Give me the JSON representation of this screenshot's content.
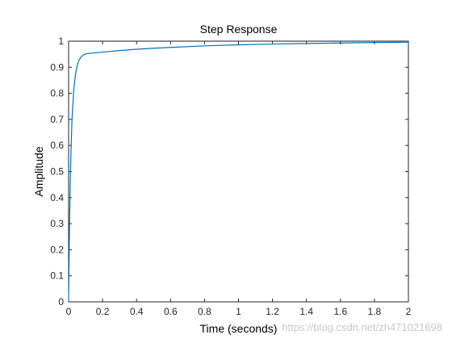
{
  "chart_data": {
    "type": "line",
    "title": "Step Response",
    "xlabel": "Time (seconds)",
    "ylabel": "Amplitude",
    "xlim": [
      0,
      2
    ],
    "ylim": [
      0,
      1
    ],
    "x_ticks": [
      0,
      0.2,
      0.4,
      0.6,
      0.8,
      1,
      1.2,
      1.4,
      1.6,
      1.8,
      2
    ],
    "y_ticks": [
      0,
      0.1,
      0.2,
      0.3,
      0.4,
      0.5,
      0.6,
      0.7,
      0.8,
      0.9,
      1
    ],
    "x_tick_labels": [
      "0",
      "0.2",
      "0.4",
      "0.6",
      "0.8",
      "1",
      "1.2",
      "1.4",
      "1.6",
      "1.8",
      "2"
    ],
    "y_tick_labels": [
      "0",
      "0.1",
      "0.2",
      "0.3",
      "0.4",
      "0.5",
      "0.6",
      "0.7",
      "0.8",
      "0.9",
      "1"
    ],
    "grid": false,
    "steady_state_value": 1,
    "series": [
      {
        "color": "#0072BD",
        "x": [
          0,
          0.005,
          0.01,
          0.015,
          0.02,
          0.03,
          0.04,
          0.05,
          0.06,
          0.07,
          0.08,
          0.09,
          0.1,
          0.12,
          0.15,
          0.2,
          0.3,
          0.4,
          0.5,
          0.6,
          0.8,
          1.0,
          1.2,
          1.4,
          1.6,
          1.8,
          2.0
        ],
        "y": [
          0,
          0.28,
          0.47,
          0.6,
          0.7,
          0.81,
          0.87,
          0.905,
          0.925,
          0.937,
          0.944,
          0.948,
          0.951,
          0.953,
          0.955,
          0.958,
          0.964,
          0.969,
          0.973,
          0.976,
          0.982,
          0.986,
          0.989,
          0.991,
          0.993,
          0.995,
          0.996
        ]
      }
    ]
  },
  "watermark": "https://blog.csdn.net/zh471021698",
  "colors": {
    "axis": "#262626",
    "line": "#0072BD",
    "reference": "#000000"
  }
}
